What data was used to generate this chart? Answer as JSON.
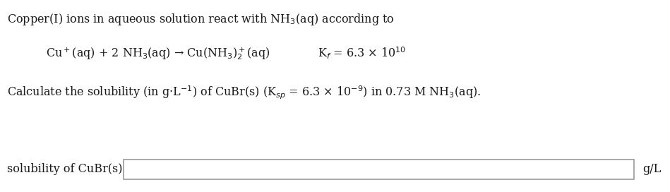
{
  "line1": "Copper(I) ions in aqueous solution react with NH$_3$(aq) according to",
  "line2_part1": "Cu$^+$(aq) + 2 NH$_3$(aq) → Cu(NH$_3$)$_2^+$(aq)",
  "line2_part2": "K$_f$ = 6.3 × 10$^{10}$",
  "line3": "Calculate the solubility (in g·L$^{-1}$) of CuBr(s) (K$_{sp}$ = 6.3 × 10$^{-9}$) in 0.73 M NH$_3$(aq).",
  "label": "solubility of CuBr(s):",
  "unit": "g/L",
  "bg_color": "#ffffff",
  "text_color": "#1a1a1a",
  "box_edge_color": "#999999",
  "fontsize": 11.5
}
